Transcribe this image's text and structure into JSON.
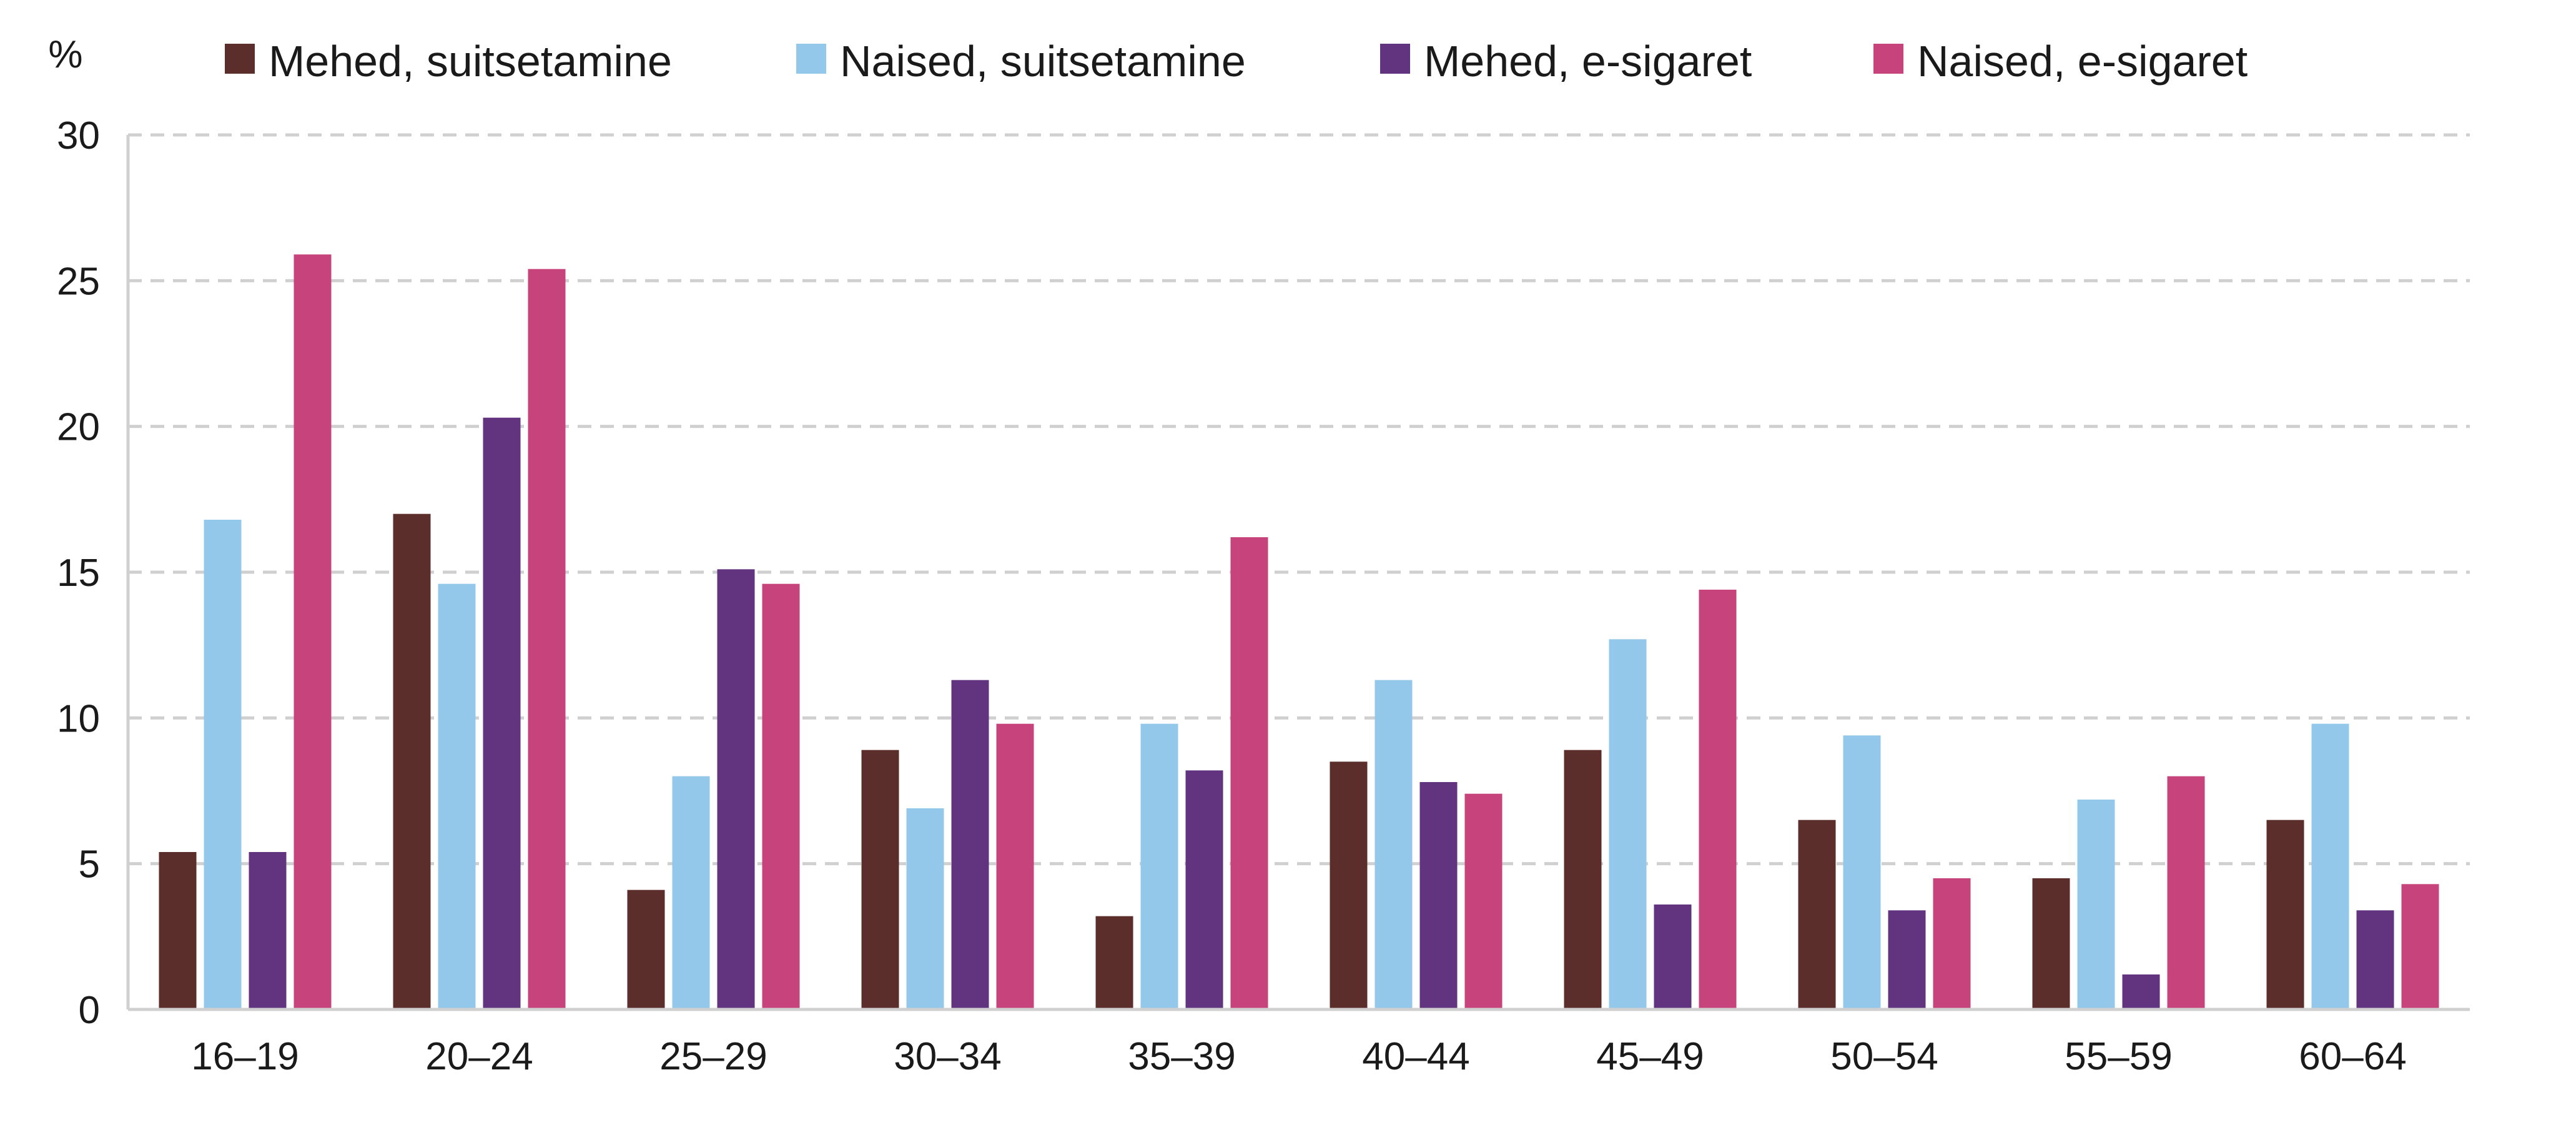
{
  "chart_data": {
    "type": "bar",
    "ylabel": "%",
    "ylim": [
      0,
      30
    ],
    "yticks": [
      0,
      5,
      10,
      15,
      20,
      25,
      30
    ],
    "grid": true,
    "legend_position": "top",
    "categories": [
      "16–19",
      "20–24",
      "25–29",
      "30–34",
      "35–39",
      "40–44",
      "45–49",
      "50–54",
      "55–59",
      "60–64"
    ],
    "series": [
      {
        "name": "Mehed, suitsetamine",
        "color": "#5c2e2b",
        "values": [
          5.4,
          17.0,
          4.1,
          8.9,
          3.2,
          8.5,
          8.9,
          6.5,
          4.5,
          6.5
        ]
      },
      {
        "name": "Naised, suitsetamine",
        "color": "#93c8ea",
        "values": [
          16.8,
          14.6,
          8.0,
          6.9,
          9.8,
          11.3,
          12.7,
          9.4,
          7.2,
          9.8
        ]
      },
      {
        "name": "Mehed, e-sigaret",
        "color": "#62337f",
        "values": [
          5.4,
          20.3,
          15.1,
          11.3,
          8.2,
          7.8,
          3.6,
          3.4,
          1.2,
          3.4
        ]
      },
      {
        "name": "Naised, e-sigaret",
        "color": "#c7437b",
        "values": [
          25.9,
          25.4,
          14.6,
          9.8,
          16.2,
          7.4,
          14.4,
          4.5,
          8.0,
          4.3
        ]
      }
    ]
  }
}
